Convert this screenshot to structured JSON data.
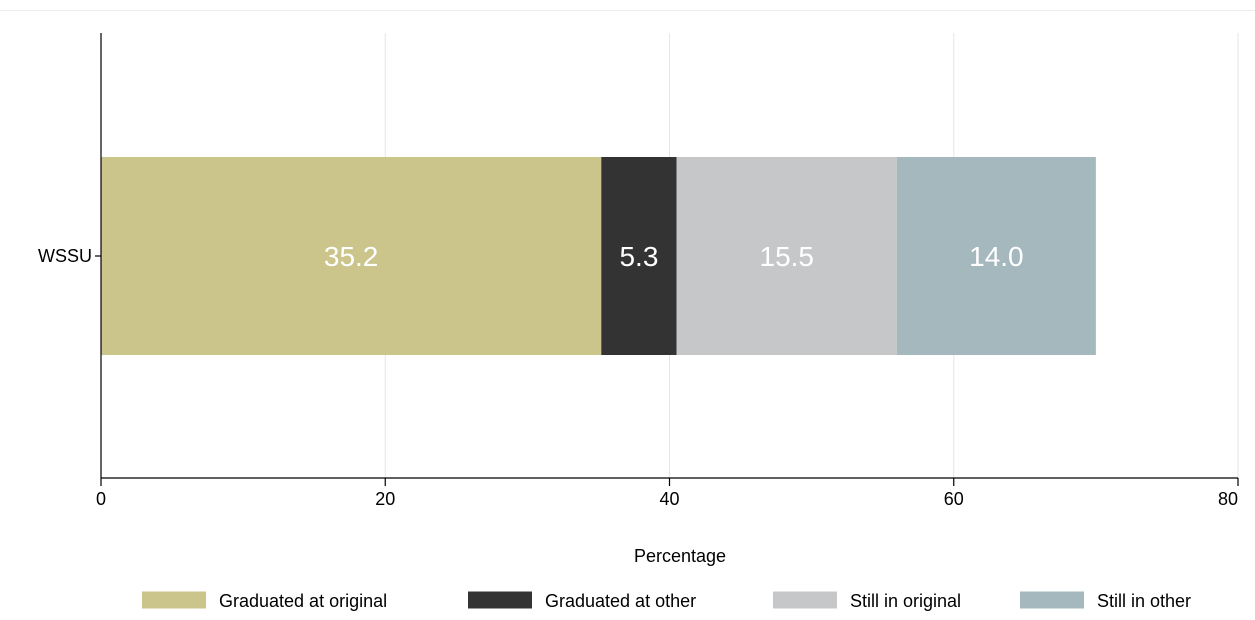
{
  "chart_data": {
    "type": "bar",
    "orientation": "horizontal",
    "stacked": true,
    "categories": [
      "WSSU"
    ],
    "series": [
      {
        "name": "Graduated at original",
        "values": [
          35.2
        ],
        "labels": [
          "35.2"
        ],
        "color": "#cbc48b"
      },
      {
        "name": "Graduated at other",
        "values": [
          5.3
        ],
        "labels": [
          "5.3"
        ],
        "color": "#333333"
      },
      {
        "name": "Still in original",
        "values": [
          15.5
        ],
        "labels": [
          "15.5"
        ],
        "color": "#c6c7c9"
      },
      {
        "name": "Still in other",
        "values": [
          14.0
        ],
        "labels": [
          "14.0"
        ],
        "color": "#a5b8be"
      }
    ],
    "xlabel": "Percentage",
    "xlim": [
      0,
      80
    ],
    "xticks": [
      0,
      20,
      40,
      60,
      80
    ],
    "grid": true,
    "legend": "bottom"
  }
}
